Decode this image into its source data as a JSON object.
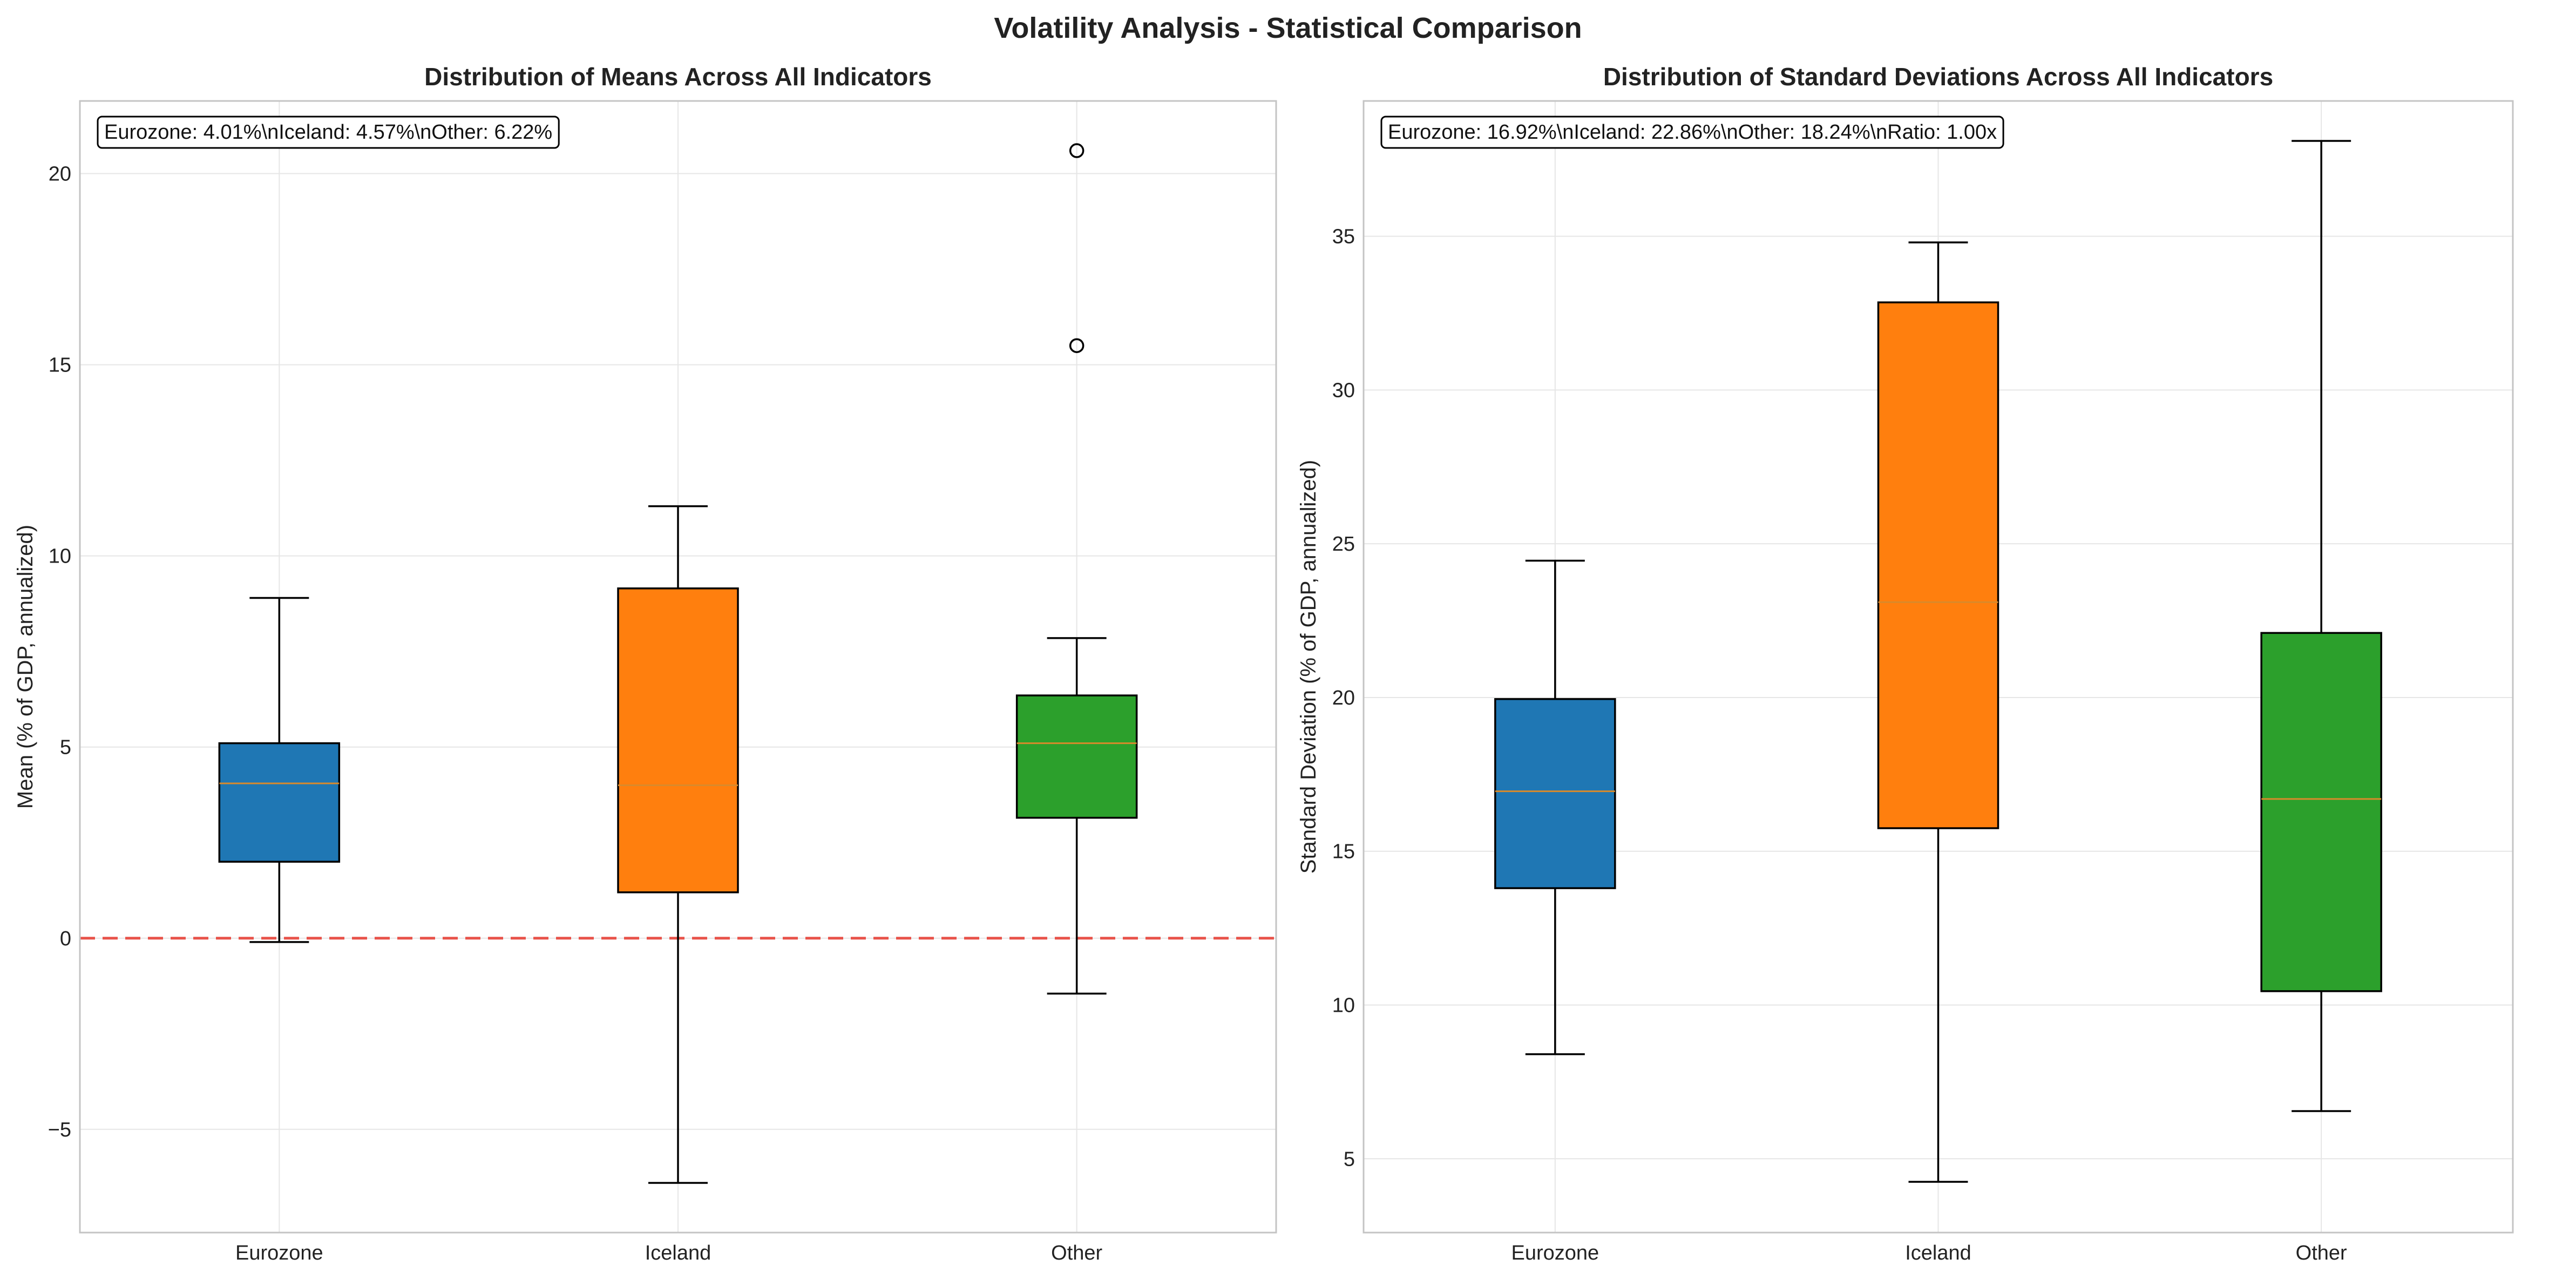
{
  "title": "Volatility Analysis - Statistical Comparison",
  "chart_data": [
    {
      "type": "box",
      "title": "Distribution of Means Across All Indicators",
      "ylabel": "Mean (% of GDP, annualized)",
      "xlabel": "",
      "categories": [
        "Eurozone",
        "Iceland",
        "Other"
      ],
      "colors": [
        "#1f77b4",
        "#ff7f0e",
        "#2ca02c"
      ],
      "ylim": [
        -7.7,
        21.9
      ],
      "yticks": [
        -5,
        0,
        5,
        10,
        15,
        20
      ],
      "ytick_labels": [
        "−5",
        "0",
        "5",
        "10",
        "15",
        "20"
      ],
      "reference_line": {
        "y": 0,
        "color": "#e8534a",
        "style": "dashed"
      },
      "boxes": [
        {
          "whisker_low": -0.1,
          "q1": 2.0,
          "median": 4.05,
          "q3": 5.1,
          "whisker_high": 8.9,
          "fliers": []
        },
        {
          "whisker_low": -6.4,
          "q1": 1.2,
          "median": 4.0,
          "q3": 9.15,
          "whisker_high": 11.3,
          "fliers": []
        },
        {
          "whisker_low": -1.45,
          "q1": 3.15,
          "median": 5.1,
          "q3": 6.35,
          "whisker_high": 7.85,
          "fliers": [
            15.5,
            20.6
          ]
        }
      ],
      "annotation": "Eurozone: 4.01%\\nIceland: 4.57%\\nOther: 6.22%",
      "grid": true
    },
    {
      "type": "box",
      "title": "Distribution of Standard Deviations Across All Indicators",
      "ylabel": "Standard Deviation (% of GDP, annualized)",
      "xlabel": "",
      "categories": [
        "Eurozone",
        "Iceland",
        "Other"
      ],
      "colors": [
        "#1f77b4",
        "#ff7f0e",
        "#2ca02c"
      ],
      "ylim": [
        2.6,
        39.4
      ],
      "yticks": [
        5,
        10,
        15,
        20,
        25,
        30,
        35
      ],
      "ytick_labels": [
        "5",
        "10",
        "15",
        "20",
        "25",
        "30",
        "35"
      ],
      "boxes": [
        {
          "whisker_low": 8.4,
          "q1": 13.8,
          "median": 16.95,
          "q3": 19.95,
          "whisker_high": 24.45,
          "fliers": []
        },
        {
          "whisker_low": 4.25,
          "q1": 15.75,
          "median": 23.1,
          "q3": 32.85,
          "whisker_high": 34.8,
          "fliers": []
        },
        {
          "whisker_low": 6.55,
          "q1": 10.45,
          "median": 16.7,
          "q3": 22.1,
          "whisker_high": 38.1,
          "fliers": []
        }
      ],
      "annotation": "Eurozone: 16.92%\\nIceland: 22.86%\\nOther: 18.24%\\nRatio: 1.00x",
      "grid": true
    }
  ]
}
